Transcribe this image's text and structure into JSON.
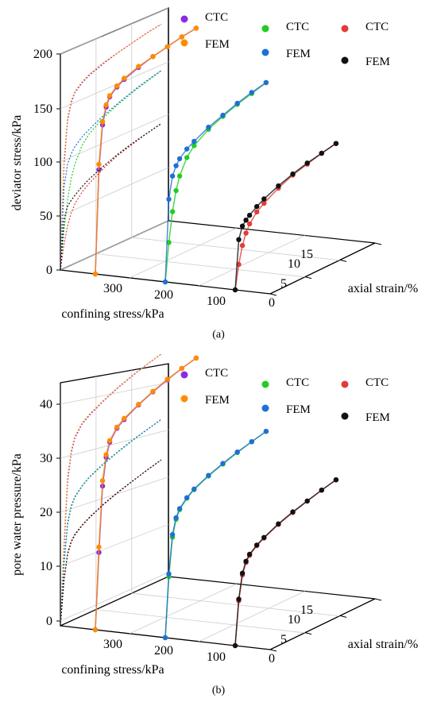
{
  "captions": {
    "a": "(a)",
    "b": "(b)"
  },
  "legend_colors": {
    "CTC_300": "#8a2be2",
    "FEM_300": "#ff8c00",
    "CTC_200": "#22cc22",
    "FEM_200": "#1f6fd6",
    "CTC_100": "#e23b3b",
    "FEM_100": "#111111"
  },
  "chart_data": [
    {
      "type": "scatter",
      "title": "",
      "zlabel": "deviator stress/kPa",
      "xlabel": "confining stress/kPa",
      "ylabel": "axial strain/%",
      "zlim": [
        0,
        200
      ],
      "z_ticks": [
        "0",
        "50",
        "100",
        "150",
        "200"
      ],
      "x_ticks": [
        "300",
        "200",
        "100"
      ],
      "y_ticks": [
        "0",
        "5",
        "10",
        "15"
      ],
      "grid": true,
      "legend_position": "top",
      "legend": [
        "CTC",
        "FEM",
        "CTC",
        "FEM",
        "CTC",
        "FEM"
      ],
      "series": [
        {
          "name": "CTC",
          "confining_stress": 300,
          "axial_strain": [
            0,
            0.5,
            1,
            1.5,
            2,
            3,
            4,
            6,
            8,
            10,
            12,
            14
          ],
          "values": [
            0,
            95,
            135,
            150,
            158,
            164,
            168,
            173,
            177,
            180,
            183,
            185
          ]
        },
        {
          "name": "FEM",
          "confining_stress": 300,
          "axial_strain": [
            0,
            0.5,
            1,
            1.5,
            2,
            3,
            4,
            6,
            8,
            10,
            12,
            14
          ],
          "values": [
            0,
            100,
            138,
            152,
            159,
            165,
            169,
            174,
            177,
            180,
            183,
            185
          ]
        },
        {
          "name": "CTC",
          "confining_stress": 200,
          "axial_strain": [
            0,
            0.5,
            1,
            1.5,
            2,
            3,
            4,
            6,
            8,
            10,
            12,
            14
          ],
          "values": [
            0,
            35,
            62,
            80,
            92,
            106,
            114,
            123,
            129,
            134,
            138,
            142
          ]
        },
        {
          "name": "FEM",
          "confining_stress": 200,
          "axial_strain": [
            0,
            0.5,
            1,
            1.5,
            2,
            3,
            4,
            6,
            8,
            10,
            12,
            14
          ],
          "values": [
            0,
            75,
            95,
            103,
            108,
            114,
            118,
            125,
            130,
            135,
            139,
            142
          ]
        },
        {
          "name": "CTC",
          "confining_stress": 100,
          "axial_strain": [
            0,
            0.5,
            1,
            1.5,
            2,
            3,
            4,
            6,
            8,
            10,
            12,
            14
          ],
          "values": [
            0,
            22,
            38,
            48,
            55,
            63,
            68,
            76,
            82,
            86,
            90,
            93
          ]
        },
        {
          "name": "FEM",
          "confining_stress": 100,
          "axial_strain": [
            0,
            0.5,
            1,
            1.5,
            2,
            3,
            4,
            6,
            8,
            10,
            12,
            14
          ],
          "values": [
            0,
            45,
            56,
            60,
            63,
            68,
            72,
            78,
            83,
            87,
            90,
            93
          ]
        }
      ]
    },
    {
      "type": "scatter",
      "title": "",
      "zlabel": "pore water pressure/kPa",
      "xlabel": "confining stress/kPa",
      "ylabel": "axial strain/%",
      "zlim": [
        0,
        45
      ],
      "z_ticks": [
        "0",
        "10",
        "20",
        "30",
        "40"
      ],
      "x_ticks": [
        "300",
        "200",
        "100"
      ],
      "y_ticks": [
        "0",
        "5",
        "10",
        "15"
      ],
      "grid": true,
      "legend_position": "top",
      "legend": [
        "CTC",
        "FEM",
        "CTC",
        "FEM",
        "CTC",
        "FEM"
      ],
      "series": [
        {
          "name": "CTC",
          "confining_stress": 300,
          "axial_strain": [
            0,
            0.5,
            1,
            1.5,
            2,
            3,
            4,
            6,
            8,
            10,
            12,
            14
          ],
          "values": [
            0,
            14,
            26,
            31,
            33.5,
            35.5,
            36.5,
            38,
            39.2,
            40.2,
            41.1,
            41.8
          ]
        },
        {
          "name": "FEM",
          "confining_stress": 300,
          "axial_strain": [
            0,
            0.5,
            1,
            1.5,
            2,
            3,
            4,
            6,
            8,
            10,
            12,
            14
          ],
          "values": [
            0,
            15,
            27,
            31.5,
            33.8,
            35.7,
            36.7,
            38.1,
            39.3,
            40.3,
            41.1,
            41.8
          ]
        },
        {
          "name": "CTC",
          "confining_stress": 200,
          "axial_strain": [
            0,
            0.5,
            1,
            1.5,
            2,
            3,
            4,
            6,
            8,
            10,
            12,
            14
          ],
          "values": [
            0,
            11,
            18,
            21,
            22.5,
            24,
            25,
            26.3,
            27.3,
            28.2,
            29,
            29.7
          ]
        },
        {
          "name": "FEM",
          "confining_stress": 200,
          "axial_strain": [
            0,
            0.5,
            1,
            1.5,
            2,
            3,
            4,
            6,
            8,
            10,
            12,
            14
          ],
          "values": [
            0,
            11.5,
            18.5,
            21.3,
            22.7,
            24.1,
            25.1,
            26.4,
            27.4,
            28.3,
            29,
            29.7
          ]
        },
        {
          "name": "CTC",
          "confining_stress": 100,
          "axial_strain": [
            0,
            0.5,
            1,
            1.5,
            2,
            3,
            4,
            6,
            8,
            10,
            12,
            14
          ],
          "values": [
            0,
            8,
            12.5,
            14.5,
            15.5,
            16.7,
            17.5,
            18.8,
            19.8,
            20.7,
            21.5,
            22.2
          ]
        },
        {
          "name": "FEM",
          "confining_stress": 100,
          "axial_strain": [
            0,
            0.5,
            1,
            1.5,
            2,
            3,
            4,
            6,
            8,
            10,
            12,
            14
          ],
          "values": [
            0,
            8.3,
            12.8,
            14.7,
            15.7,
            16.8,
            17.6,
            18.9,
            19.9,
            20.7,
            21.5,
            22.2
          ]
        }
      ]
    }
  ]
}
